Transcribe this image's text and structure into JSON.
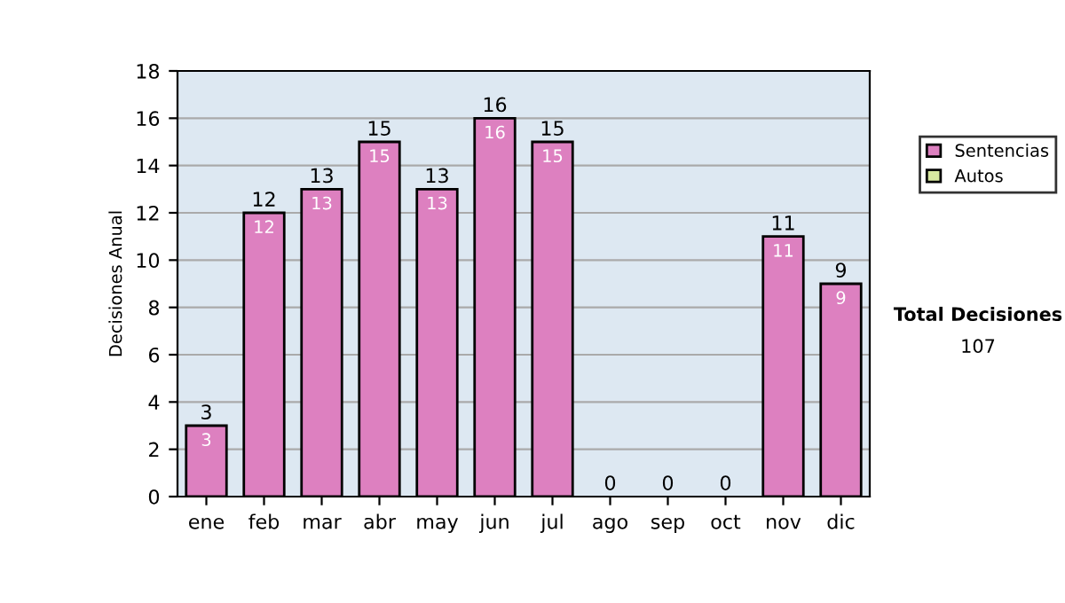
{
  "chart_data": {
    "type": "bar",
    "ylabel": "Decisiones Anual",
    "categories": [
      "ene",
      "feb",
      "mar",
      "abr",
      "may",
      "jun",
      "jul",
      "ago",
      "sep",
      "oct",
      "nov",
      "dic"
    ],
    "series": [
      {
        "name": "Sentencias",
        "color": "#dd80c0",
        "values": [
          3,
          12,
          13,
          15,
          13,
          16,
          15,
          0,
          0,
          0,
          11,
          9
        ],
        "value_labels": [
          "3",
          "12",
          "13",
          "15",
          "13",
          "16",
          "15",
          null,
          null,
          null,
          "11",
          "9"
        ]
      },
      {
        "name": "Autos",
        "color": "#d8e8a0",
        "values": [
          0,
          0,
          0,
          0,
          0,
          0,
          0,
          0,
          0,
          0,
          0,
          0
        ]
      }
    ],
    "stacked": true,
    "totals": [
      "3",
      "12",
      "13",
      "15",
      "13",
      "16",
      "15",
      "0",
      "0",
      "0",
      "11",
      "9"
    ],
    "ylim": [
      0,
      18
    ],
    "yticks": [
      0,
      2,
      4,
      6,
      8,
      10,
      12,
      14,
      16,
      18
    ],
    "grid": "y",
    "legend": "right",
    "annotations": [
      "Total Decisiones",
      "107"
    ]
  }
}
